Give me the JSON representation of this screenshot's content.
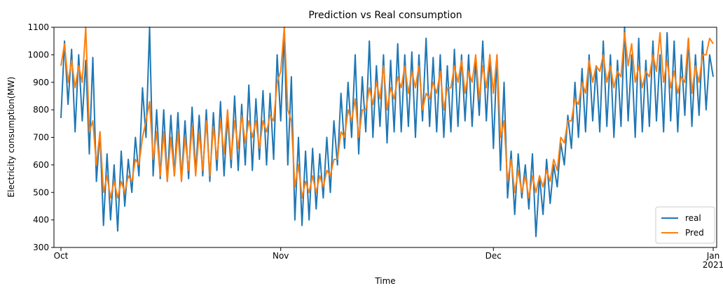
{
  "chart_data": {
    "type": "line",
    "title": "Prediction vs Real consumption",
    "x_label": "Time",
    "y_label": "Electricity consumption(MW)",
    "categories": [
      "Oct",
      null,
      null,
      null,
      null,
      null,
      null,
      null,
      null,
      null,
      null,
      null,
      null,
      null,
      null,
      null,
      null,
      null,
      null,
      null,
      null,
      null,
      null,
      null,
      null,
      null,
      null,
      null,
      null,
      null,
      null,
      null,
      null,
      null,
      null,
      null,
      null,
      null,
      null,
      null,
      null,
      null,
      null,
      null,
      null,
      null,
      null,
      null,
      null,
      null,
      null,
      null,
      null,
      null,
      null,
      null,
      null,
      null,
      null,
      null,
      null,
      null,
      "Nov",
      null,
      null,
      null,
      null,
      null,
      null,
      null,
      null,
      null,
      null,
      null,
      null,
      null,
      null,
      null,
      null,
      null,
      null,
      null,
      null,
      null,
      null,
      null,
      null,
      null,
      null,
      null,
      null,
      null,
      null,
      null,
      null,
      null,
      null,
      null,
      null,
      null,
      null,
      null,
      null,
      null,
      null,
      null,
      null,
      null,
      null,
      null,
      null,
      null,
      null,
      null,
      null,
      null,
      null,
      null,
      null,
      null,
      null,
      null,
      "Dec",
      null,
      null,
      null,
      null,
      null,
      null,
      null,
      null,
      null,
      null,
      null,
      null,
      null,
      null,
      null,
      null,
      null,
      null,
      null,
      null,
      null,
      null,
      null,
      null,
      null,
      null,
      null,
      null,
      null,
      null,
      null,
      null,
      null,
      null,
      null,
      null,
      null,
      null,
      null,
      null,
      null,
      null,
      null,
      null,
      null,
      null,
      null,
      null,
      null,
      null,
      null,
      null,
      null,
      null,
      null,
      null,
      null,
      null,
      null,
      null,
      null,
      "Jan\n2021"
    ],
    "series": [
      {
        "name": "real",
        "color": "#1f77b4",
        "values": [
          770,
          1050,
          820,
          1020,
          720,
          1000,
          760,
          980,
          640,
          990,
          540,
          720,
          380,
          640,
          400,
          600,
          360,
          650,
          450,
          620,
          500,
          700,
          560,
          880,
          700,
          1100,
          560,
          800,
          550,
          800,
          540,
          780,
          560,
          790,
          540,
          760,
          550,
          810,
          570,
          780,
          560,
          800,
          540,
          790,
          580,
          830,
          560,
          780,
          590,
          850,
          580,
          820,
          600,
          890,
          580,
          840,
          620,
          870,
          600,
          860,
          620,
          1000,
          760,
          1080,
          600,
          920,
          400,
          700,
          380,
          650,
          400,
          660,
          440,
          640,
          480,
          700,
          500,
          760,
          600,
          860,
          660,
          900,
          700,
          1000,
          640,
          920,
          720,
          1050,
          700,
          960,
          740,
          1000,
          680,
          980,
          720,
          1040,
          720,
          1000,
          740,
          1010,
          700,
          1000,
          760,
          1060,
          740,
          990,
          720,
          1000,
          700,
          960,
          720,
          1020,
          740,
          1000,
          760,
          1000,
          740,
          980,
          780,
          1050,
          760,
          1000,
          660,
          1000,
          580,
          900,
          480,
          650,
          420,
          640,
          480,
          600,
          440,
          640,
          340,
          560,
          420,
          620,
          460,
          600,
          520,
          680,
          600,
          780,
          660,
          900,
          700,
          950,
          720,
          1000,
          760,
          960,
          720,
          1050,
          740,
          1000,
          700,
          980,
          740,
          1100,
          760,
          1000,
          700,
          1060,
          720,
          980,
          740,
          1050,
          760,
          1000,
          720,
          1080,
          760,
          1050,
          720,
          1000,
          780,
          1060,
          740,
          1000,
          780,
          1050,
          800,
          1000,
          920
        ]
      },
      {
        "name": "Pred",
        "color": "#ff7f0e",
        "values": [
          960,
          1040,
          900,
          980,
          880,
          960,
          900,
          1100,
          720,
          760,
          600,
          720,
          500,
          560,
          480,
          540,
          480,
          540,
          500,
          560,
          540,
          620,
          600,
          700,
          760,
          830,
          620,
          720,
          560,
          720,
          540,
          700,
          560,
          720,
          540,
          700,
          580,
          740,
          560,
          720,
          580,
          760,
          560,
          740,
          620,
          760,
          640,
          800,
          620,
          760,
          660,
          780,
          680,
          760,
          700,
          760,
          660,
          760,
          720,
          780,
          760,
          900,
          940,
          1100,
          800,
          760,
          520,
          600,
          480,
          540,
          500,
          560,
          500,
          560,
          520,
          580,
          560,
          620,
          620,
          720,
          700,
          800,
          760,
          840,
          700,
          800,
          800,
          880,
          820,
          900,
          840,
          960,
          800,
          880,
          840,
          920,
          880,
          960,
          860,
          940,
          880,
          960,
          800,
          860,
          840,
          900,
          860,
          940,
          800,
          880,
          880,
          960,
          900,
          980,
          860,
          940,
          900,
          1000,
          840,
          960,
          880,
          1000,
          860,
          1000,
          700,
          760,
          540,
          620,
          500,
          580,
          500,
          560,
          480,
          560,
          500,
          560,
          520,
          580,
          540,
          620,
          580,
          700,
          680,
          760,
          760,
          840,
          820,
          900,
          860,
          980,
          900,
          960,
          940,
          1000,
          900,
          960,
          880,
          940,
          920,
          1080,
          960,
          1040,
          900,
          960,
          880,
          940,
          920,
          1000,
          940,
          1080,
          900,
          980,
          880,
          940,
          860,
          920,
          900,
          1060,
          860,
          960,
          900,
          1000,
          1000,
          1060,
          1040
        ]
      }
    ],
    "ylim": [
      300,
      1100
    ],
    "yticks": [
      300,
      400,
      500,
      600,
      700,
      800,
      900,
      1000,
      1100
    ],
    "grid": false,
    "legend": "lower right"
  }
}
